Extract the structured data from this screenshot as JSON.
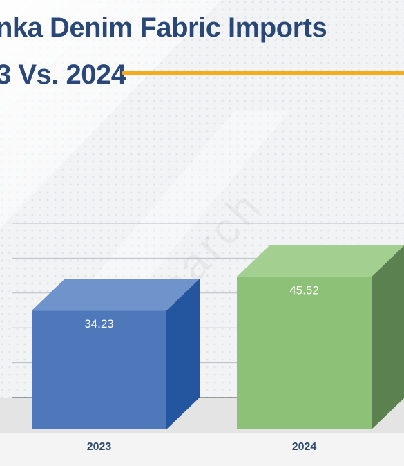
{
  "title": {
    "line1": "nka Denim Fabric Imports",
    "line2": "3 Vs. 2024"
  },
  "colors": {
    "title": "#2a4877",
    "accent": "#f5ac1c",
    "bar_2023_front": "#4f78bb",
    "bar_2023_top": "#6f93cb",
    "bar_2023_side": "#23569e",
    "bar_2024_front": "#8dc178",
    "bar_2024_top": "#a3cf91",
    "bar_2024_side": "#5c8150",
    "floor": "#e4e4e4"
  },
  "watermark": "6Wresearch",
  "chart_data": {
    "type": "bar",
    "style": "3d",
    "categories": [
      "2023",
      "2024"
    ],
    "values": [
      34.23,
      45.52
    ],
    "value_labels": [
      "34.23",
      "45.52"
    ],
    "ylim": [
      0,
      50
    ],
    "grid": true,
    "title": "nka Denim Fabric Imports 3 Vs. 2024",
    "xlabel": "",
    "ylabel": ""
  }
}
